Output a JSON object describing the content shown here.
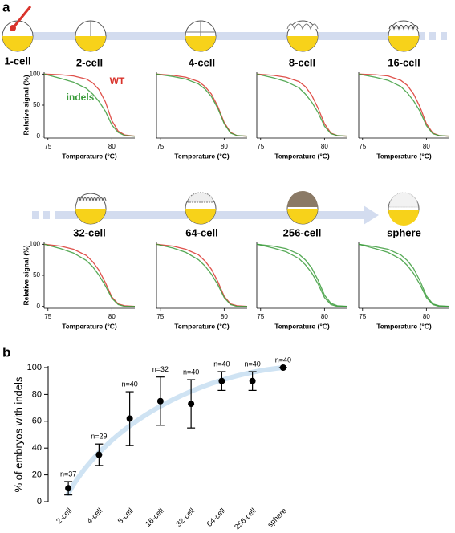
{
  "panel_labels": [
    "a",
    "b"
  ],
  "first_stage": "1-cell",
  "chart_data": [
    {
      "type": "line",
      "title": "2-cell",
      "x": [
        74.7,
        76,
        77,
        78,
        78.5,
        79,
        79.5,
        80,
        80.5,
        81,
        81.8
      ],
      "xlim": [
        74.7,
        81.8
      ],
      "ylim": [
        -3,
        103
      ],
      "xticks": [
        75,
        80
      ],
      "yticks": [
        0,
        50,
        100
      ],
      "xlabel": "Temperature (°C)",
      "ylabel": "Relative signal (%)",
      "series": [
        {
          "name": "WT",
          "color": "#d9332b",
          "values": [
            100,
            99,
            97,
            92,
            86,
            75,
            55,
            25,
            8,
            2,
            0
          ]
        },
        {
          "name": "indels",
          "color": "#3a9b3a",
          "values": [
            100,
            93,
            87,
            77,
            68,
            56,
            40,
            18,
            6,
            1,
            0
          ]
        }
      ]
    },
    {
      "type": "line",
      "title": "4-cell",
      "x": [
        74.7,
        76,
        77,
        78,
        78.5,
        79,
        79.5,
        80,
        80.5,
        81,
        81.8
      ],
      "xlim": [
        74.7,
        81.8
      ],
      "ylim": [
        -3,
        103
      ],
      "xticks": [
        75,
        80
      ],
      "xlabel": "Temperature (°C)",
      "series": [
        {
          "color": "#d9332b",
          "values": [
            100,
            98,
            95,
            88,
            80,
            68,
            48,
            22,
            6,
            1,
            0
          ]
        },
        {
          "color": "#3a9b3a",
          "values": [
            100,
            96,
            92,
            84,
            76,
            64,
            45,
            20,
            5,
            1,
            0
          ]
        }
      ]
    },
    {
      "type": "line",
      "title": "8-cell",
      "x": [
        74.7,
        76,
        77,
        78,
        78.5,
        79,
        79.5,
        80,
        80.5,
        81,
        81.8
      ],
      "xlim": [
        74.7,
        81.8
      ],
      "ylim": [
        -3,
        103
      ],
      "xticks": [
        75,
        80
      ],
      "xlabel": "Temperature (°C)",
      "series": [
        {
          "color": "#d9332b",
          "values": [
            100,
            98,
            95,
            88,
            80,
            66,
            45,
            20,
            5,
            1,
            0
          ]
        },
        {
          "color": "#3a9b3a",
          "values": [
            100,
            94,
            88,
            78,
            68,
            55,
            38,
            16,
            4,
            1,
            0
          ]
        }
      ]
    },
    {
      "type": "line",
      "title": "16-cell",
      "x": [
        74.7,
        76,
        77,
        78,
        78.5,
        79,
        79.5,
        80,
        80.5,
        81,
        81.8
      ],
      "xlim": [
        74.7,
        81.8
      ],
      "ylim": [
        -3,
        103
      ],
      "xticks": [
        75,
        80
      ],
      "xlabel": "Temperature (°C)",
      "series": [
        {
          "color": "#d9332b",
          "values": [
            100,
            99,
            97,
            90,
            82,
            68,
            47,
            20,
            5,
            1,
            0
          ]
        },
        {
          "color": "#3a9b3a",
          "values": [
            100,
            95,
            90,
            80,
            70,
            57,
            40,
            17,
            4,
            1,
            0
          ]
        }
      ]
    },
    {
      "type": "line",
      "title": "32-cell",
      "x": [
        74.7,
        76,
        77,
        78,
        78.5,
        79,
        79.5,
        80,
        80.5,
        81,
        81.8
      ],
      "xlim": [
        74.7,
        81.8
      ],
      "ylim": [
        -3,
        103
      ],
      "xticks": [
        75,
        80
      ],
      "yticks": [
        0,
        50,
        100
      ],
      "xlabel": "Temperature (°C)",
      "ylabel": "Relative signal (%)",
      "series": [
        {
          "color": "#d9332b",
          "values": [
            100,
            97,
            92,
            82,
            72,
            58,
            38,
            15,
            4,
            1,
            0
          ]
        },
        {
          "color": "#3a9b3a",
          "values": [
            100,
            93,
            86,
            74,
            64,
            50,
            33,
            13,
            3,
            0,
            0
          ]
        }
      ]
    },
    {
      "type": "line",
      "title": "64-cell",
      "x": [
        74.7,
        76,
        77,
        78,
        78.5,
        79,
        79.5,
        80,
        80.5,
        81,
        81.8
      ],
      "xlim": [
        74.7,
        81.8
      ],
      "ylim": [
        -3,
        103
      ],
      "xticks": [
        75,
        80
      ],
      "xlabel": "Temperature (°C)",
      "series": [
        {
          "color": "#d9332b",
          "values": [
            100,
            97,
            92,
            83,
            73,
            60,
            40,
            16,
            4,
            1,
            0
          ]
        },
        {
          "color": "#3a9b3a",
          "values": [
            100,
            94,
            87,
            75,
            65,
            52,
            35,
            14,
            3,
            0,
            0
          ]
        }
      ]
    },
    {
      "type": "line",
      "title": "256-cell",
      "x": [
        74.7,
        76,
        77,
        78,
        78.5,
        79,
        79.5,
        80,
        80.5,
        81,
        81.8
      ],
      "xlim": [
        74.7,
        81.8
      ],
      "ylim": [
        -3,
        103
      ],
      "xticks": [
        75,
        80
      ],
      "xlabel": "Temperature (°C)",
      "series": [
        {
          "color": "#3a9b3a",
          "values": [
            100,
            97,
            93,
            84,
            75,
            62,
            42,
            18,
            5,
            1,
            0
          ]
        },
        {
          "color": "#3a9b3a",
          "values": [
            100,
            94,
            88,
            77,
            67,
            54,
            36,
            14,
            3,
            0,
            0
          ]
        }
      ]
    },
    {
      "type": "line",
      "title": "sphere",
      "x": [
        74.7,
        76,
        77,
        78,
        78.5,
        79,
        79.5,
        80,
        80.5,
        81,
        81.8
      ],
      "xlim": [
        74.7,
        81.8
      ],
      "ylim": [
        -3,
        103
      ],
      "xticks": [
        75,
        80
      ],
      "xlabel": "Temperature (°C)",
      "series": [
        {
          "color": "#3a9b3a",
          "values": [
            100,
            96,
            92,
            83,
            74,
            61,
            41,
            17,
            4,
            1,
            0
          ]
        },
        {
          "color": "#3a9b3a",
          "values": [
            100,
            93,
            87,
            76,
            66,
            53,
            35,
            14,
            3,
            0,
            0
          ]
        }
      ]
    },
    {
      "type": "errorbar",
      "ylabel": "% of embryos with indels",
      "categories": [
        "2-cell",
        "4-cell",
        "8-cell",
        "16-cell",
        "32-cell",
        "64-cell",
        "256-cell",
        "sphere"
      ],
      "values": [
        10,
        35,
        62,
        75,
        73,
        90,
        90,
        100
      ],
      "errors": [
        5,
        8,
        20,
        18,
        18,
        7,
        7,
        0
      ],
      "annotations": [
        "n=37",
        "n=29",
        "n=40",
        "n=32",
        "n=40",
        "n=40",
        "n=40",
        "n=40"
      ],
      "color": "#000000",
      "ylim": [
        0,
        100
      ],
      "yticks": [
        0,
        20,
        40,
        60,
        80,
        100
      ]
    }
  ]
}
